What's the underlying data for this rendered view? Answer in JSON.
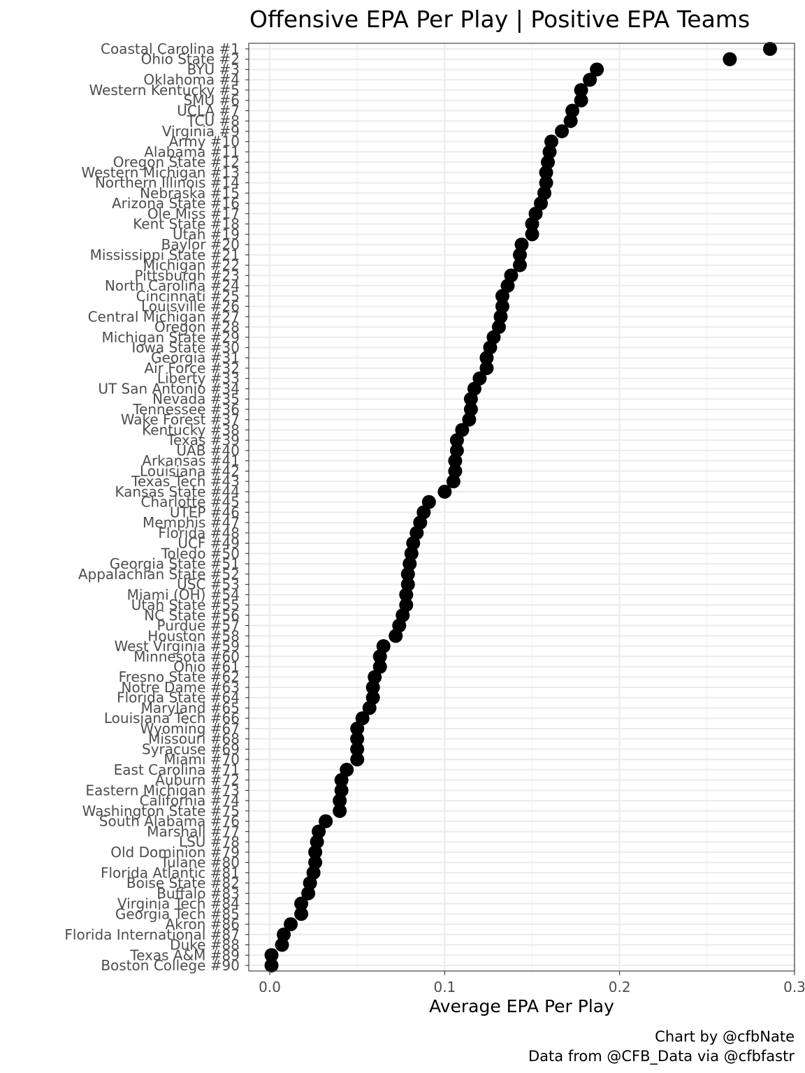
{
  "chart_data": {
    "type": "scatter",
    "title": "Offensive EPA Per Play | Positive EPA Teams",
    "xlabel": "Average EPA Per Play",
    "ylabel": "",
    "xlim": [
      -0.012,
      0.3
    ],
    "x_ticks": [
      0.0,
      0.1,
      0.2,
      0.3
    ],
    "x_tick_labels": [
      "0.0",
      "0.1",
      "0.2",
      "0.3"
    ],
    "grid": true,
    "point_color": "#000000",
    "points": [
      {
        "label": "Coastal Carolina #1",
        "value": 0.286
      },
      {
        "label": "Ohio State #2",
        "value": 0.263
      },
      {
        "label": "BYU #3",
        "value": 0.187
      },
      {
        "label": "Oklahoma #4",
        "value": 0.183
      },
      {
        "label": "Western Kentucky #5",
        "value": 0.178
      },
      {
        "label": "SMU #6",
        "value": 0.178
      },
      {
        "label": "UCLA #7",
        "value": 0.173
      },
      {
        "label": "TCU #8",
        "value": 0.172
      },
      {
        "label": "Virginia #9",
        "value": 0.167
      },
      {
        "label": "Army #10",
        "value": 0.161
      },
      {
        "label": "Alabama #11",
        "value": 0.16
      },
      {
        "label": "Oregon State #12",
        "value": 0.159
      },
      {
        "label": "Western Michigan #13",
        "value": 0.158
      },
      {
        "label": "Northern Illinois #14",
        "value": 0.158
      },
      {
        "label": "Nebraska #15",
        "value": 0.157
      },
      {
        "label": "Arizona State #16",
        "value": 0.155
      },
      {
        "label": "Ole Miss #17",
        "value": 0.152
      },
      {
        "label": "Kent State #18",
        "value": 0.15
      },
      {
        "label": "Utah #19",
        "value": 0.15
      },
      {
        "label": "Baylor #20",
        "value": 0.144
      },
      {
        "label": "Mississippi State #21",
        "value": 0.143
      },
      {
        "label": "Michigan #22",
        "value": 0.143
      },
      {
        "label": "Pittsburgh #23",
        "value": 0.138
      },
      {
        "label": "North Carolina #24",
        "value": 0.136
      },
      {
        "label": "Cincinnati #25",
        "value": 0.133
      },
      {
        "label": "Louisville #26",
        "value": 0.133
      },
      {
        "label": "Central Michigan #27",
        "value": 0.132
      },
      {
        "label": "Oregon #28",
        "value": 0.131
      },
      {
        "label": "Michigan State #29",
        "value": 0.128
      },
      {
        "label": "Iowa State #30",
        "value": 0.126
      },
      {
        "label": "Georgia #31",
        "value": 0.124
      },
      {
        "label": "Air Force #32",
        "value": 0.124
      },
      {
        "label": "Liberty #33",
        "value": 0.12
      },
      {
        "label": "UT San Antonio #34",
        "value": 0.117
      },
      {
        "label": "Nevada #35",
        "value": 0.115
      },
      {
        "label": "Tennessee #36",
        "value": 0.115
      },
      {
        "label": "Wake Forest #37",
        "value": 0.114
      },
      {
        "label": "Kentucky #38",
        "value": 0.11
      },
      {
        "label": "Texas #39",
        "value": 0.107
      },
      {
        "label": "UAB #40",
        "value": 0.107
      },
      {
        "label": "Arkansas #41",
        "value": 0.106
      },
      {
        "label": "Louisiana #42",
        "value": 0.106
      },
      {
        "label": "Texas Tech #43",
        "value": 0.105
      },
      {
        "label": "Kansas State #44",
        "value": 0.1
      },
      {
        "label": "Charlotte #45",
        "value": 0.091
      },
      {
        "label": "UTEP #46",
        "value": 0.088
      },
      {
        "label": "Memphis #47",
        "value": 0.086
      },
      {
        "label": "Florida #48",
        "value": 0.084
      },
      {
        "label": "UCF #49",
        "value": 0.082
      },
      {
        "label": "Toledo #50",
        "value": 0.081
      },
      {
        "label": "Georgia State #51",
        "value": 0.08
      },
      {
        "label": "Appalachian State #52",
        "value": 0.079
      },
      {
        "label": "USC #53",
        "value": 0.079
      },
      {
        "label": "Miami (OH) #54",
        "value": 0.078
      },
      {
        "label": "Utah State #55",
        "value": 0.078
      },
      {
        "label": "NC State #56",
        "value": 0.076
      },
      {
        "label": "Purdue #57",
        "value": 0.074
      },
      {
        "label": "Houston #58",
        "value": 0.072
      },
      {
        "label": "West Virginia #59",
        "value": 0.065
      },
      {
        "label": "Minnesota #60",
        "value": 0.063
      },
      {
        "label": "Ohio #61",
        "value": 0.063
      },
      {
        "label": "Fresno State #62",
        "value": 0.06
      },
      {
        "label": "Notre Dame #63",
        "value": 0.059
      },
      {
        "label": "Florida State #64",
        "value": 0.059
      },
      {
        "label": "Maryland #65",
        "value": 0.057
      },
      {
        "label": "Louisiana Tech #66",
        "value": 0.053
      },
      {
        "label": "Wyoming #67",
        "value": 0.05
      },
      {
        "label": "Missouri #68",
        "value": 0.05
      },
      {
        "label": "Syracuse #69",
        "value": 0.05
      },
      {
        "label": "Miami #70",
        "value": 0.05
      },
      {
        "label": "East Carolina #71",
        "value": 0.044
      },
      {
        "label": "Auburn #72",
        "value": 0.041
      },
      {
        "label": "Eastern Michigan #73",
        "value": 0.041
      },
      {
        "label": "California #74",
        "value": 0.04
      },
      {
        "label": "Washington State #75",
        "value": 0.04
      },
      {
        "label": "South Alabama #76",
        "value": 0.032
      },
      {
        "label": "Marshall #77",
        "value": 0.028
      },
      {
        "label": "LSU #78",
        "value": 0.027
      },
      {
        "label": "Old Dominion #79",
        "value": 0.026
      },
      {
        "label": "Tulane #80",
        "value": 0.026
      },
      {
        "label": "Florida Atlantic #81",
        "value": 0.025
      },
      {
        "label": "Boise State #82",
        "value": 0.023
      },
      {
        "label": "Buffalo #83",
        "value": 0.022
      },
      {
        "label": "Virginia Tech #84",
        "value": 0.018
      },
      {
        "label": "Georgia Tech #85",
        "value": 0.018
      },
      {
        "label": "Akron #86",
        "value": 0.012
      },
      {
        "label": "Florida International #87",
        "value": 0.008
      },
      {
        "label": "Duke #88",
        "value": 0.007
      },
      {
        "label": "Texas A&M #89",
        "value": 0.001
      },
      {
        "label": "Boston College #90",
        "value": 0.001
      }
    ]
  },
  "caption": {
    "line1": "Chart by @cfbNate",
    "line2": "Data from @CFB_Data via @cfbfastr"
  }
}
